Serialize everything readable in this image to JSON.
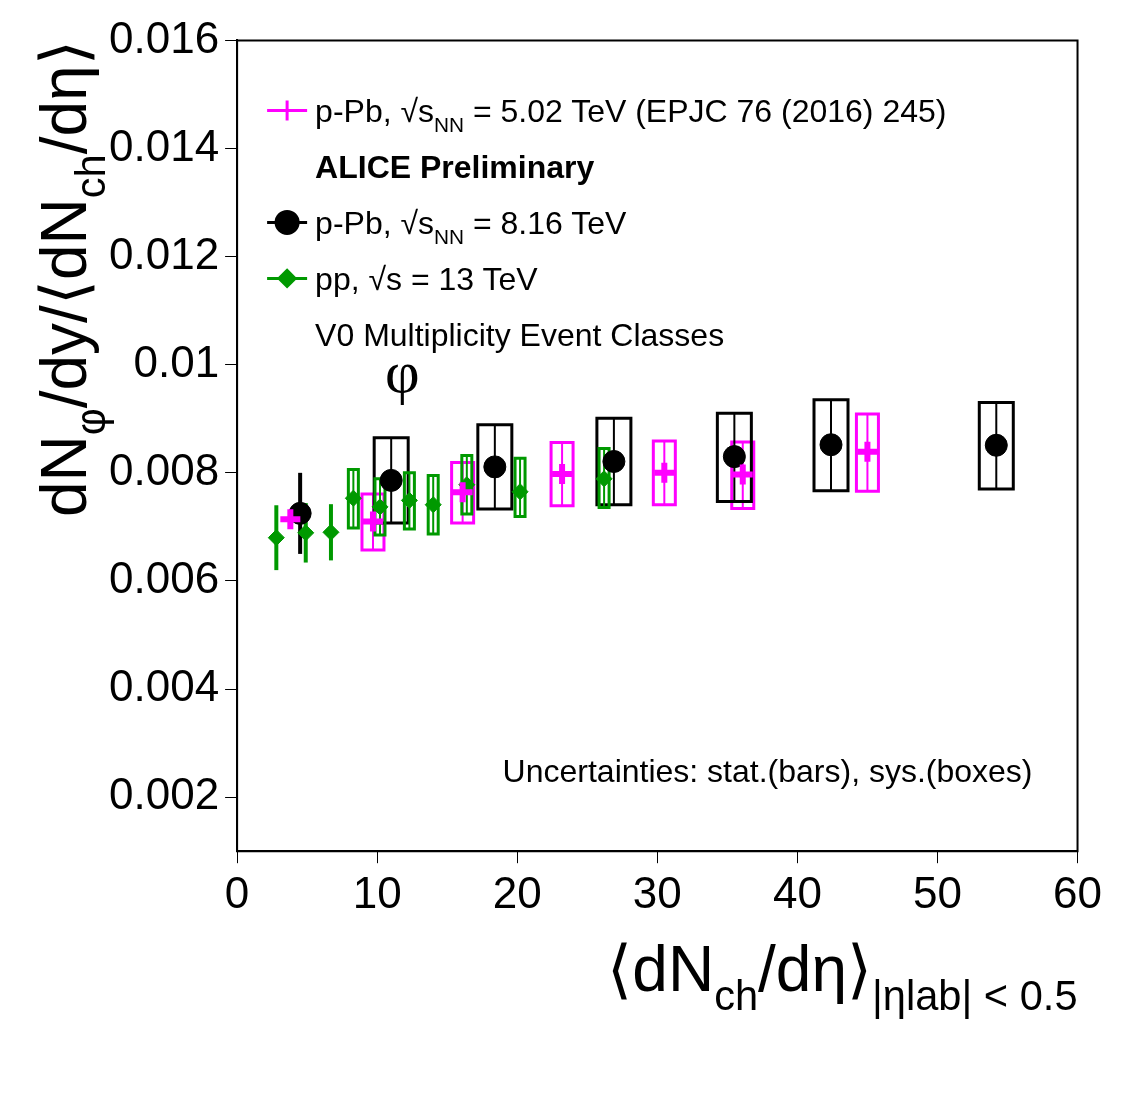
{
  "chart_data": {
    "type": "scatter",
    "xlabel": "⟨dN$_{ch}$/dη⟩$_{|η}$$_{lab}$$_{| < 0.5}$",
    "ylabel": "dN$_{φ}$/dy/⟨dN$_{ch}$/dη⟩",
    "xlim": [
      0,
      60
    ],
    "xticks": [
      0,
      10,
      20,
      30,
      40,
      50,
      60
    ],
    "ylim": [
      0.001,
      0.016
    ],
    "yticks": [
      0.002,
      0.004,
      0.006,
      0.008,
      0.01,
      0.012,
      0.014,
      0.016
    ],
    "grid": false,
    "legend": "top left",
    "annotations": [
      "ALICE Preliminary",
      "V0 Multiplicity Event Classes",
      "φ",
      "Uncertainties: stat.(bars), sys.(boxes)"
    ],
    "series": [
      {
        "name": "p-Pb, √s$_{NN}$ = 5.02 TeV (EPJC 76 (2016) 245)",
        "color": "#ff00ff",
        "marker": "cross",
        "x": [
          3.8,
          9.7,
          16.1,
          23.2,
          30.5,
          36.1,
          45.0
        ],
        "values": [
          0.00714,
          0.0071,
          0.00764,
          0.00798,
          0.008,
          0.00797,
          0.00839
        ],
        "errors": [
          null,
          [
            0.00657,
            0.00761
          ],
          [
            0.00707,
            0.00819
          ],
          [
            0.00739,
            0.00856
          ],
          [
            0.00741,
            0.00859
          ],
          [
            0.00734,
            0.00857
          ],
          [
            0.00766,
            0.00909
          ]
        ]
      },
      {
        "name": "p-Pb, √s$_{NN}$ = 8.16 TeV",
        "color": "#000000",
        "marker": "circle",
        "x": [
          4.5,
          11.0,
          18.4,
          26.9,
          35.5,
          42.4,
          54.2
        ],
        "values": [
          0.00725,
          0.00786,
          0.00811,
          0.00821,
          0.0083,
          0.00852,
          0.00851
        ],
        "errors": [
          0.00075,
          [
            0.00707,
            0.00865
          ],
          [
            0.00733,
            0.00889
          ],
          [
            0.00741,
            0.00901
          ],
          [
            0.00747,
            0.0091
          ],
          [
            0.00767,
            0.00935
          ],
          [
            0.0077,
            0.0093
          ]
        ]
      },
      {
        "name": "pp, √s = 13 TeV",
        "color": "#009900",
        "marker": "diamond",
        "x": [
          2.8,
          4.9,
          6.7,
          8.3,
          10.2,
          12.3,
          14.0,
          16.4,
          20.2,
          26.2
        ],
        "values": [
          0.0068,
          0.00689,
          0.0069,
          0.00753,
          0.00737,
          0.00749,
          0.00741,
          0.00778,
          0.00765,
          0.00789
        ],
        "errors": [
          0.0006,
          0.00055,
          0.00052,
          [
            0.00698,
            0.00806
          ],
          [
            0.00685,
            0.00789
          ],
          [
            0.00696,
            0.008
          ],
          [
            0.00687,
            0.00795
          ],
          [
            0.00724,
            0.00832
          ],
          [
            0.00719,
            0.00827
          ],
          [
            0.00736,
            0.00845
          ]
        ]
      }
    ]
  }
}
